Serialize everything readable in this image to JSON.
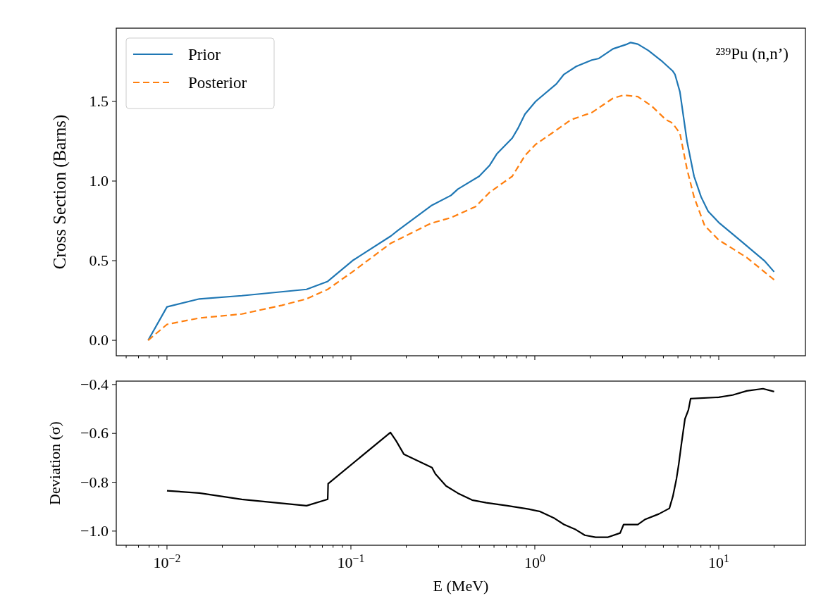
{
  "chart_data": [
    {
      "type": "line",
      "ylabel": "Cross Section (Barns)",
      "annotations": [
        "²³⁹Pu (n,n’)"
      ],
      "log": "x",
      "legend": "top left",
      "tick_labels": "y",
      "xlim": [
        0.0053,
        29.6
      ],
      "ylim": [
        -0.097,
        1.96
      ],
      "xticks": [
        {
          "value": 0.006,
          "label": null
        },
        {
          "value": 0.007,
          "label": null
        },
        {
          "value": 0.008,
          "label": null
        },
        {
          "value": 0.009,
          "label": null
        },
        {
          "value": 0.01,
          "label": null
        },
        {
          "value": 0.02,
          "label": null
        },
        {
          "value": 0.03,
          "label": null
        },
        {
          "value": 0.04,
          "label": null
        },
        {
          "value": 0.05,
          "label": null
        },
        {
          "value": 0.06,
          "label": null
        },
        {
          "value": 0.07,
          "label": null
        },
        {
          "value": 0.08,
          "label": null
        },
        {
          "value": 0.09,
          "label": null
        },
        {
          "value": 0.1,
          "label": null
        },
        {
          "value": 0.2,
          "label": null
        },
        {
          "value": 0.3,
          "label": null
        },
        {
          "value": 0.4,
          "label": null
        },
        {
          "value": 0.5,
          "label": null
        },
        {
          "value": 0.6,
          "label": null
        },
        {
          "value": 0.7,
          "label": null
        },
        {
          "value": 0.8,
          "label": null
        },
        {
          "value": 0.9,
          "label": null
        },
        {
          "value": 1,
          "label": null
        },
        {
          "value": 2,
          "label": null
        },
        {
          "value": 3,
          "label": null
        },
        {
          "value": 4,
          "label": null
        },
        {
          "value": 5,
          "label": null
        },
        {
          "value": 6,
          "label": null
        },
        {
          "value": 7,
          "label": null
        },
        {
          "value": 8,
          "label": null
        },
        {
          "value": 9,
          "label": null
        },
        {
          "value": 10,
          "label": null
        },
        {
          "value": 20,
          "label": null
        }
      ],
      "yticks": [
        {
          "value": 0,
          "label": "0.0"
        },
        0.5,
        {
          "value": 1,
          "label": "1.0"
        },
        1.5
      ],
      "series": [
        {
          "name": "Prior",
          "color": "#1f77b4",
          "line_style": "solid",
          "x": [
            0.0079,
            0.01,
            0.015,
            0.0255,
            0.0574,
            0.0748,
            0.102,
            0.165,
            0.18,
            0.273,
            0.35,
            0.382,
            0.498,
            0.569,
            0.621,
            0.754,
            0.809,
            0.884,
            1.01,
            1.31,
            1.44,
            1.68,
            2.04,
            2.23,
            2.66,
            3.18,
            3.32,
            3.63,
            4.14,
            4.94,
            5.63,
            5.78,
            6.15,
            6.72,
            7.34,
            8.02,
            8.76,
            10,
            13.0,
            17.7,
            20
          ],
          "values": [
            0.0,
            0.21,
            0.26,
            0.28,
            0.32,
            0.37,
            0.5,
            0.655,
            0.69,
            0.845,
            0.91,
            0.95,
            1.03,
            1.1,
            1.17,
            1.27,
            1.33,
            1.42,
            1.5,
            1.61,
            1.67,
            1.72,
            1.76,
            1.77,
            1.83,
            1.86,
            1.87,
            1.86,
            1.82,
            1.75,
            1.69,
            1.67,
            1.56,
            1.25,
            1.03,
            0.9,
            0.81,
            0.74,
            0.63,
            0.5,
            0.43
          ]
        },
        {
          "name": "Posterior",
          "color": "#ff7f0e",
          "line_style": "dashed",
          "x": [
            0.0079,
            0.01,
            0.015,
            0.0255,
            0.0422,
            0.0574,
            0.0748,
            0.102,
            0.165,
            0.273,
            0.35,
            0.418,
            0.477,
            0.569,
            0.754,
            0.884,
            1.01,
            1.31,
            1.57,
            2.04,
            2.66,
            3.04,
            3.63,
            4.33,
            5.16,
            5.49,
            5.63,
            6.15,
            6.72,
            7.34,
            8.38,
            10,
            14.2,
            20
          ],
          "values": [
            0.0,
            0.1,
            0.14,
            0.165,
            0.22,
            0.26,
            0.32,
            0.43,
            0.61,
            0.735,
            0.77,
            0.81,
            0.84,
            0.93,
            1.03,
            1.16,
            1.23,
            1.32,
            1.385,
            1.43,
            1.52,
            1.54,
            1.53,
            1.47,
            1.385,
            1.37,
            1.36,
            1.3,
            1.075,
            0.9,
            0.72,
            0.63,
            0.52,
            0.38
          ]
        }
      ]
    },
    {
      "type": "line",
      "xlabel": "E (MeV)",
      "ylabel": "Deviation (σ)",
      "log": "x",
      "xlim": [
        0.0053,
        29.6
      ],
      "ylim": [
        -1.058,
        -0.386
      ],
      "xticks": [
        {
          "value": 0.006,
          "label": null
        },
        {
          "value": 0.007,
          "label": null
        },
        {
          "value": 0.008,
          "label": null
        },
        {
          "value": 0.009,
          "label": null
        },
        {
          "value": 0.01,
          "label": "10$^{−2}$"
        },
        {
          "value": 0.02,
          "label": null
        },
        {
          "value": 0.03,
          "label": null
        },
        {
          "value": 0.04,
          "label": null
        },
        {
          "value": 0.05,
          "label": null
        },
        {
          "value": 0.06,
          "label": null
        },
        {
          "value": 0.07,
          "label": null
        },
        {
          "value": 0.08,
          "label": null
        },
        {
          "value": 0.09,
          "label": null
        },
        {
          "value": 0.1,
          "label": "10$^{−1}$"
        },
        {
          "value": 0.2,
          "label": null
        },
        {
          "value": 0.3,
          "label": null
        },
        {
          "value": 0.4,
          "label": null
        },
        {
          "value": 0.5,
          "label": null
        },
        {
          "value": 0.6,
          "label": null
        },
        {
          "value": 0.7,
          "label": null
        },
        {
          "value": 0.8,
          "label": null
        },
        {
          "value": 0.9,
          "label": null
        },
        {
          "value": 1,
          "label": "10$^{0}$"
        },
        {
          "value": 2,
          "label": null
        },
        {
          "value": 3,
          "label": null
        },
        {
          "value": 4,
          "label": null
        },
        {
          "value": 5,
          "label": null
        },
        {
          "value": 6,
          "label": null
        },
        {
          "value": 7,
          "label": null
        },
        {
          "value": 8,
          "label": null
        },
        {
          "value": 9,
          "label": null
        },
        {
          "value": 10,
          "label": "10$^{1}$"
        },
        {
          "value": 20,
          "label": null
        }
      ],
      "yticks": [
        {
          "value": -1.0,
          "label": "−1.0"
        },
        {
          "value": -0.8,
          "label": "−0.8"
        },
        {
          "value": -0.6,
          "label": "−0.6"
        },
        {
          "value": -0.4,
          "label": "−0.4"
        }
      ],
      "series": [
        {
          "color": "#000000",
          "x": [
            0.01,
            0.015,
            0.0255,
            0.0574,
            0.0748,
            0.0752,
            0.164,
            0.176,
            0.194,
            0.276,
            0.288,
            0.329,
            0.382,
            0.456,
            0.544,
            0.709,
            0.924,
            1.07,
            1.28,
            1.44,
            1.67,
            1.87,
            2.14,
            2.5,
            2.91,
            3.04,
            3.63,
            3.96,
            4.72,
            5.39,
            5.63,
            5.89,
            6.05,
            6.27,
            6.55,
            6.84,
            7.03,
            10,
            11.9,
            14.2,
            17.4,
            20
          ],
          "values": [
            -0.835,
            -0.844,
            -0.87,
            -0.896,
            -0.87,
            -0.806,
            -0.596,
            -0.63,
            -0.685,
            -0.74,
            -0.766,
            -0.815,
            -0.845,
            -0.873,
            -0.884,
            -0.896,
            -0.91,
            -0.92,
            -0.948,
            -0.973,
            -0.994,
            -1.017,
            -1.025,
            -1.025,
            -1.008,
            -0.973,
            -0.973,
            -0.953,
            -0.93,
            -0.907,
            -0.858,
            -0.786,
            -0.73,
            -0.642,
            -0.541,
            -0.504,
            -0.458,
            -0.452,
            -0.443,
            -0.426,
            -0.417,
            -0.429
          ]
        }
      ]
    }
  ]
}
